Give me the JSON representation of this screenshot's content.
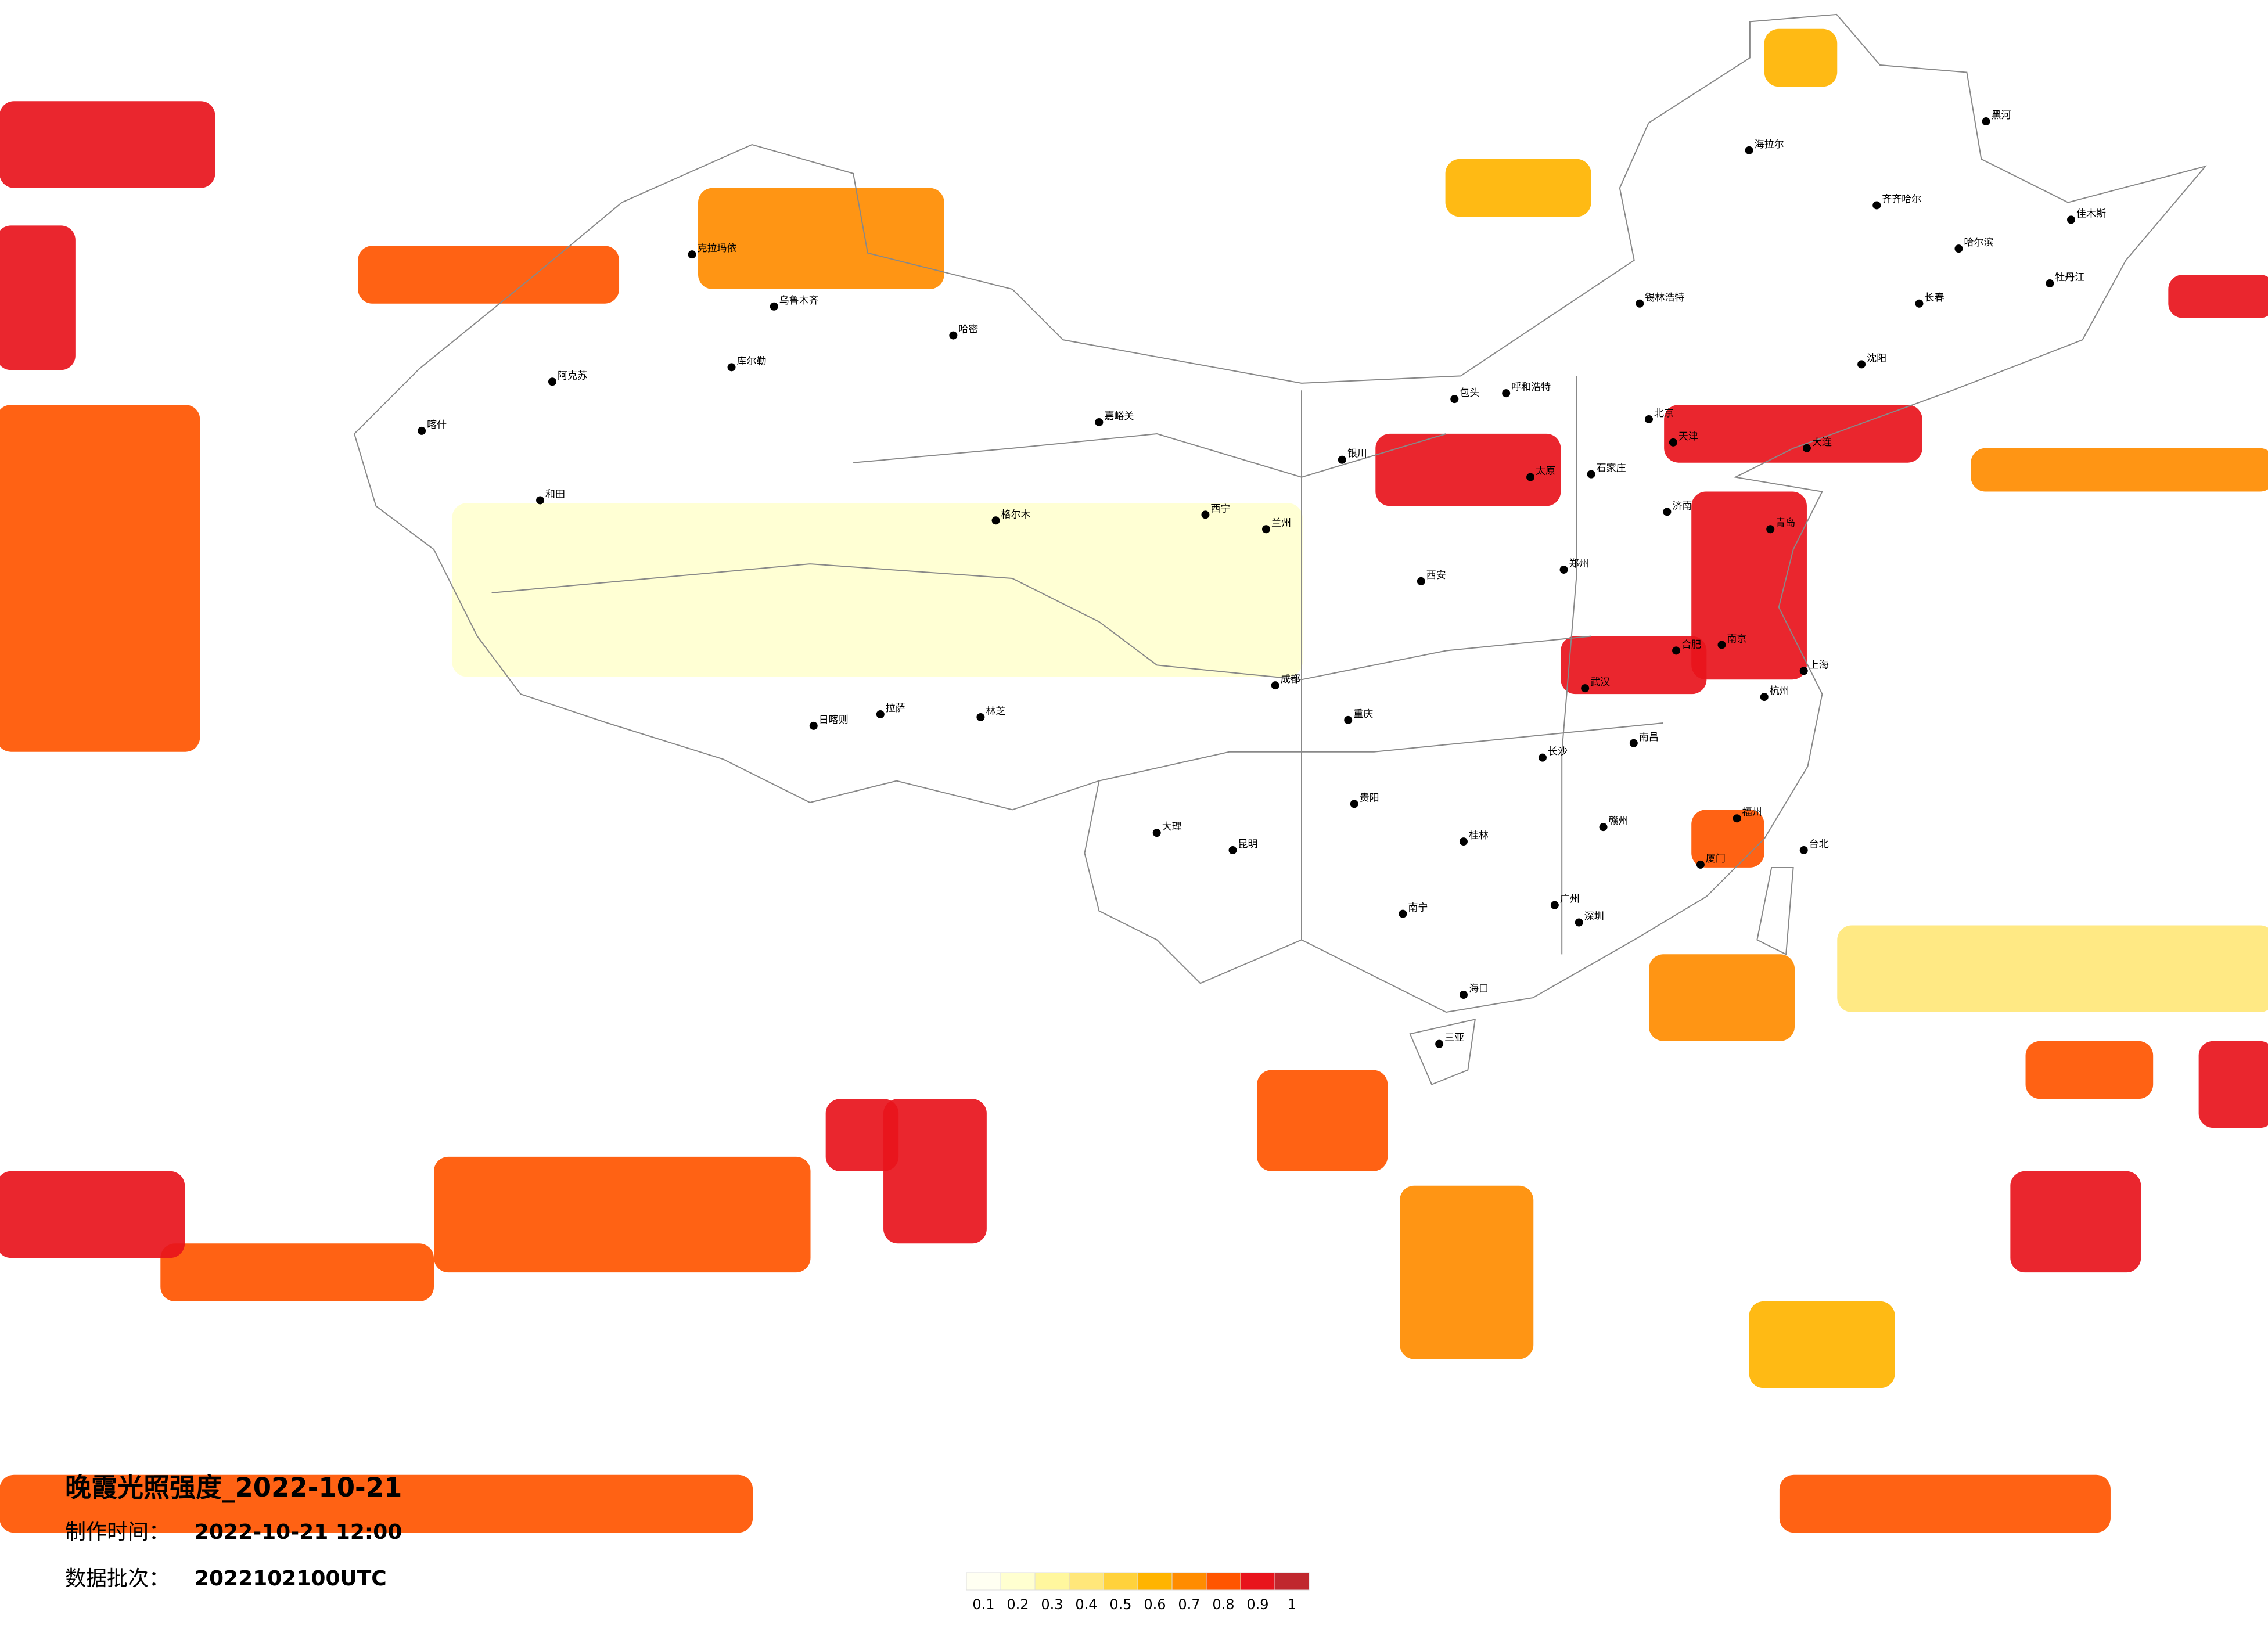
{
  "map": {
    "title": "晚霞光照强度_2022-10-21",
    "production_time": {
      "label": "制作时间：",
      "value": "2022-10-21 12:00"
    },
    "data_batch": {
      "label": "数据批次：",
      "value": "2022102100UTC"
    },
    "legend": {
      "levels": [
        0.1,
        0.2,
        0.3,
        0.4,
        0.5,
        0.6,
        0.7,
        0.8,
        0.9,
        1
      ],
      "colors": [
        "#fffff2",
        "#ffffd0",
        "#fff79e",
        "#ffe77a",
        "#ffd23c",
        "#ffb400",
        "#ff8c00",
        "#ff5500",
        "#e8141c",
        "#c0282e"
      ]
    },
    "patches": [
      {
        "lon": [
          77,
          105
        ],
        "lat": [
          31,
          37
        ],
        "level": 0.2
      },
      {
        "lon": [
          122.6,
          137
        ],
        "lat": [
          19.4,
          22.4
        ],
        "level": 0.4
      },
      {
        "lon": [
          119.7,
          124.5
        ],
        "lat": [
          6.4,
          9.4
        ],
        "level": 0.6
      },
      {
        "lon": [
          109.7,
          114.5
        ],
        "lat": [
          46.9,
          48.9
        ],
        "level": 0.6
      },
      {
        "lon": [
          120.2,
          122.6
        ],
        "lat": [
          51.4,
          53.4
        ],
        "level": 0.6
      },
      {
        "lon": [
          85.1,
          93.2
        ],
        "lat": [
          44.4,
          47.9
        ],
        "level": 0.7
      },
      {
        "lon": [
          127,
          137
        ],
        "lat": [
          37.4,
          38.9
        ],
        "level": 0.7
      },
      {
        "lon": [
          108.2,
          112.6
        ],
        "lat": [
          7.4,
          13.4
        ],
        "level": 0.7
      },
      {
        "lon": [
          116.4,
          121.2
        ],
        "lat": [
          18.4,
          21.4
        ],
        "level": 0.7
      },
      {
        "lon": [
          62,
          68.7
        ],
        "lat": [
          28.4,
          40.4
        ],
        "level": 0.8
      },
      {
        "lon": [
          73.9,
          82.5
        ],
        "lat": [
          43.9,
          45.9
        ],
        "level": 0.8
      },
      {
        "lon": [
          103.5,
          107.8
        ],
        "lat": [
          13.9,
          17.4
        ],
        "level": 0.8
      },
      {
        "lon": [
          128.8,
          133
        ],
        "lat": [
          16.4,
          18.4
        ],
        "level": 0.8
      },
      {
        "lon": [
          67.4,
          76.4
        ],
        "lat": [
          9.4,
          11.4
        ],
        "level": 0.8
      },
      {
        "lon": [
          76.4,
          88.8
        ],
        "lat": [
          10.4,
          14.4
        ],
        "level": 0.8
      },
      {
        "lon": [
          62.1,
          86.9
        ],
        "lat": [
          1.4,
          3.4
        ],
        "level": 0.8
      },
      {
        "lon": [
          120.7,
          131.6
        ],
        "lat": [
          1.4,
          3.4
        ],
        "level": 0.8
      },
      {
        "lon": [
          117.8,
          120.2
        ],
        "lat": [
          24.4,
          26.4
        ],
        "level": 0.8
      },
      {
        "lon": [
          62,
          64.6
        ],
        "lat": [
          41.6,
          46.6
        ],
        "level": 0.9
      },
      {
        "lon": [
          62.1,
          69.2
        ],
        "lat": [
          47.9,
          50.9
        ],
        "level": 0.9
      },
      {
        "lon": [
          107.4,
          113.5
        ],
        "lat": [
          36.9,
          39.4
        ],
        "level": 0.9
      },
      {
        "lon": [
          117.8,
          121.6
        ],
        "lat": [
          30.9,
          37.4
        ],
        "level": 0.9
      },
      {
        "lon": [
          113.5,
          118.3
        ],
        "lat": [
          30.4,
          32.4
        ],
        "level": 0.9
      },
      {
        "lon": [
          116.9,
          125.4
        ],
        "lat": [
          38.4,
          40.4
        ],
        "level": 0.9
      },
      {
        "lon": [
          89.3,
          91.7
        ],
        "lat": [
          13.9,
          16.4
        ],
        "level": 0.9
      },
      {
        "lon": [
          128.3,
          132.6
        ],
        "lat": [
          10.4,
          13.9
        ],
        "level": 0.9
      },
      {
        "lon": [
          134.5,
          137
        ],
        "lat": [
          15.4,
          18.4
        ],
        "level": 0.9
      },
      {
        "lon": [
          62,
          68.2
        ],
        "lat": [
          10.9,
          13.9
        ],
        "level": 0.9
      },
      {
        "lon": [
          91.2,
          94.6
        ],
        "lat": [
          11.4,
          16.4
        ],
        "level": 0.9
      },
      {
        "lon": [
          133.5,
          137
        ],
        "lat": [
          43.4,
          44.9
        ],
        "level": 0.9
      }
    ],
    "cities": [
      {
        "name": "北京",
        "lon": 116.4,
        "lat": 39.9
      },
      {
        "name": "天津",
        "lon": 117.2,
        "lat": 39.1
      },
      {
        "name": "上海",
        "lon": 121.5,
        "lat": 31.2
      },
      {
        "name": "广州",
        "lon": 113.3,
        "lat": 23.1
      },
      {
        "name": "深圳",
        "lon": 114.1,
        "lat": 22.5
      },
      {
        "name": "重庆",
        "lon": 106.5,
        "lat": 29.5
      },
      {
        "name": "成都",
        "lon": 104.1,
        "lat": 30.7
      },
      {
        "name": "武汉",
        "lon": 114.3,
        "lat": 30.6
      },
      {
        "name": "西安",
        "lon": 108.9,
        "lat": 34.3
      },
      {
        "name": "郑州",
        "lon": 113.6,
        "lat": 34.7
      },
      {
        "name": "长沙",
        "lon": 112.9,
        "lat": 28.2
      },
      {
        "name": "南京",
        "lon": 118.8,
        "lat": 32.1
      },
      {
        "name": "杭州",
        "lon": 120.2,
        "lat": 30.3
      },
      {
        "name": "济南",
        "lon": 117.0,
        "lat": 36.7
      },
      {
        "name": "太原",
        "lon": 112.5,
        "lat": 37.9
      },
      {
        "name": "石家庄",
        "lon": 114.5,
        "lat": 38.0
      },
      {
        "name": "沈阳",
        "lon": 123.4,
        "lat": 41.8
      },
      {
        "name": "长春",
        "lon": 125.3,
        "lat": 43.9
      },
      {
        "name": "哈尔滨",
        "lon": 126.6,
        "lat": 45.8
      },
      {
        "name": "呼和浩特",
        "lon": 111.7,
        "lat": 40.8
      },
      {
        "name": "银川",
        "lon": 106.3,
        "lat": 38.5
      },
      {
        "name": "兰州",
        "lon": 103.8,
        "lat": 36.1
      },
      {
        "name": "西宁",
        "lon": 101.8,
        "lat": 36.6
      },
      {
        "name": "乌鲁木齐",
        "lon": 87.6,
        "lat": 43.8
      },
      {
        "name": "拉萨",
        "lon": 91.1,
        "lat": 29.7
      },
      {
        "name": "昆明",
        "lon": 102.7,
        "lat": 25.0
      },
      {
        "name": "贵阳",
        "lon": 106.7,
        "lat": 26.6
      },
      {
        "name": "南宁",
        "lon": 108.3,
        "lat": 22.8
      },
      {
        "name": "海口",
        "lon": 110.3,
        "lat": 20.0
      },
      {
        "name": "福州",
        "lon": 119.3,
        "lat": 26.1
      },
      {
        "name": "南昌",
        "lon": 115.9,
        "lat": 28.7
      },
      {
        "name": "合肥",
        "lon": 117.3,
        "lat": 31.9
      },
      {
        "name": "台北",
        "lon": 121.5,
        "lat": 25.0
      },
      {
        "name": "喀什",
        "lon": 76.0,
        "lat": 39.5
      },
      {
        "name": "克拉玛依",
        "lon": 84.9,
        "lat": 45.6
      },
      {
        "name": "哈密",
        "lon": 93.5,
        "lat": 42.8
      },
      {
        "name": "库尔勒",
        "lon": 86.2,
        "lat": 41.7
      },
      {
        "name": "和田",
        "lon": 79.9,
        "lat": 37.1
      },
      {
        "name": "格尔木",
        "lon": 94.9,
        "lat": 36.4
      },
      {
        "name": "日喀则",
        "lon": 88.9,
        "lat": 29.3
      },
      {
        "name": "林芝",
        "lon": 94.4,
        "lat": 29.6
      },
      {
        "name": "大连",
        "lon": 121.6,
        "lat": 38.9
      },
      {
        "name": "青岛",
        "lon": 120.4,
        "lat": 36.1
      },
      {
        "name": "厦门",
        "lon": 118.1,
        "lat": 24.5
      },
      {
        "name": "三亚",
        "lon": 109.5,
        "lat": 18.3
      },
      {
        "name": "黑河",
        "lon": 127.5,
        "lat": 50.2
      },
      {
        "name": "海拉尔",
        "lon": 119.7,
        "lat": 49.2
      },
      {
        "name": "齐齐哈尔",
        "lon": 123.9,
        "lat": 47.3
      },
      {
        "name": "佳木斯",
        "lon": 130.3,
        "lat": 46.8
      },
      {
        "name": "牡丹江",
        "lon": 129.6,
        "lat": 44.6
      },
      {
        "name": "大理",
        "lon": 100.2,
        "lat": 25.6
      },
      {
        "name": "桂林",
        "lon": 110.3,
        "lat": 25.3
      },
      {
        "name": "赣州",
        "lon": 114.9,
        "lat": 25.8
      },
      {
        "name": "阿克苏",
        "lon": 80.3,
        "lat": 41.2
      },
      {
        "name": "嘉峪关",
        "lon": 98.3,
        "lat": 39.8
      },
      {
        "name": "包头",
        "lon": 110.0,
        "lat": 40.6
      },
      {
        "name": "锡林浩特",
        "lon": 116.1,
        "lat": 43.9
      }
    ]
  }
}
